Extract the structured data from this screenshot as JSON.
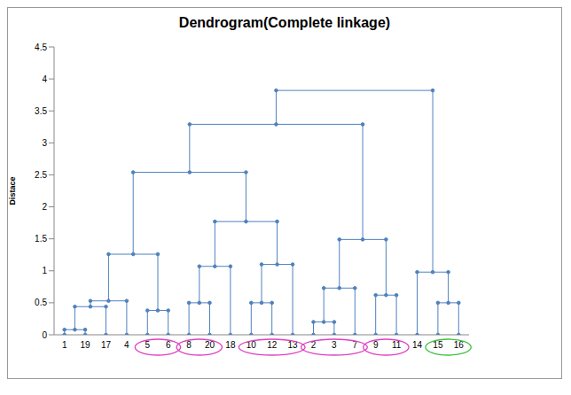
{
  "chart_data": {
    "type": "dendrogram",
    "title": "Dendrogram(Complete linkage)",
    "y_label": "Distace",
    "color": "#4f81bd",
    "marker": "circle",
    "grid": false,
    "ylim": [
      0,
      4.5
    ],
    "yticks": [
      0,
      0.5,
      1,
      1.5,
      2,
      2.5,
      3,
      3.5,
      4,
      4.5
    ],
    "tree": {
      "height": 3.82,
      "children": [
        {
          "height": 3.29,
          "children": [
            {
              "height": 2.54,
              "children": [
                {
                  "height": 1.26,
                  "children": [
                    {
                      "height": 0.53,
                      "children": [
                        {
                          "height": 0.44,
                          "children": [
                            {
                              "height": 0.08,
                              "children": [
                                "1",
                                "19"
                              ]
                            },
                            "17"
                          ]
                        },
                        "4"
                      ]
                    },
                    {
                      "height": 0.38,
                      "children": [
                        "5",
                        "6"
                      ]
                    }
                  ]
                },
                {
                  "height": 1.77,
                  "children": [
                    {
                      "height": 1.07,
                      "children": [
                        {
                          "height": 0.5,
                          "children": [
                            "8",
                            "20"
                          ]
                        },
                        "18"
                      ]
                    },
                    {
                      "height": 1.1,
                      "children": [
                        {
                          "height": 0.5,
                          "children": [
                            "10",
                            "12"
                          ]
                        },
                        "13"
                      ]
                    }
                  ]
                }
              ]
            },
            {
              "height": 1.49,
              "children": [
                {
                  "height": 0.73,
                  "children": [
                    {
                      "height": 0.2,
                      "children": [
                        "2",
                        "3"
                      ]
                    },
                    "7"
                  ]
                },
                {
                  "height": 0.62,
                  "children": [
                    "9",
                    "11"
                  ]
                }
              ]
            }
          ]
        },
        {
          "height": 0.98,
          "children": [
            "14",
            {
              "height": 0.5,
              "children": [
                "15",
                "16"
              ]
            }
          ]
        }
      ]
    },
    "circled": [
      {
        "leaves": [
          "5",
          "6"
        ],
        "color": "#e040c0"
      },
      {
        "leaves": [
          "8",
          "20"
        ],
        "color": "#e040c0"
      },
      {
        "leaves": [
          "10",
          "12",
          "13"
        ],
        "color": "#e040c0"
      },
      {
        "leaves": [
          "2",
          "3",
          "7"
        ],
        "color": "#e040c0"
      },
      {
        "leaves": [
          "9",
          "11"
        ],
        "color": "#e040c0"
      },
      {
        "leaves": [
          "15",
          "16"
        ],
        "color": "#40c040"
      }
    ]
  }
}
